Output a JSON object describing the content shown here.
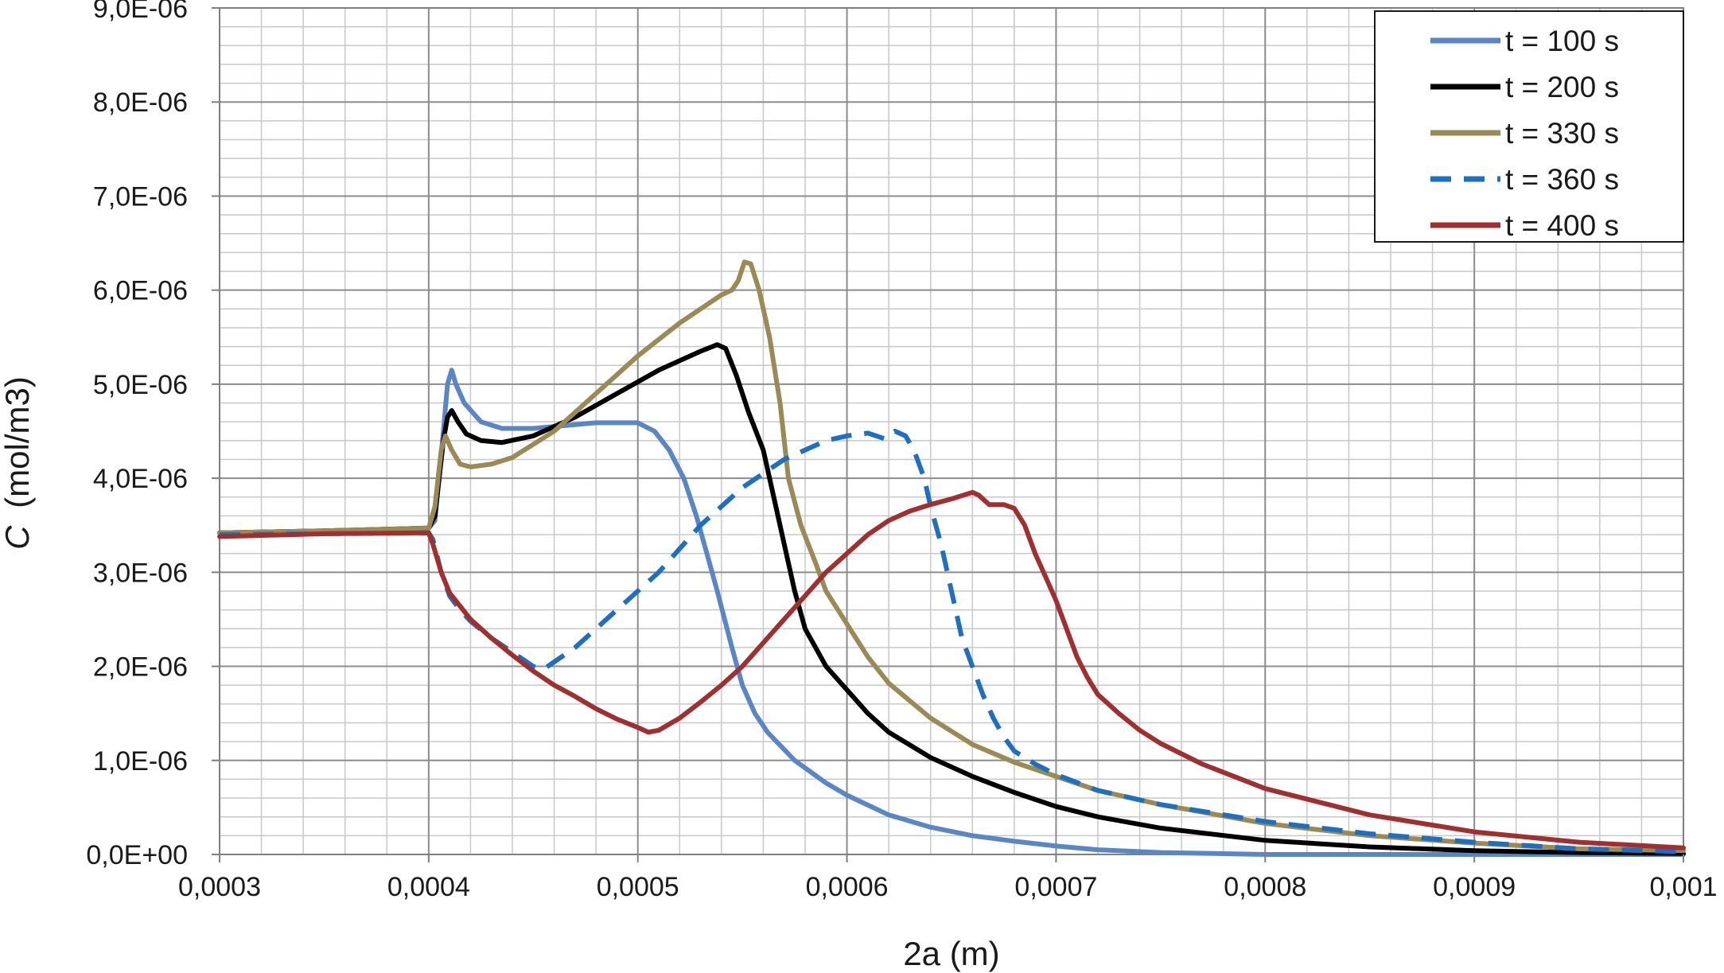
{
  "chart_data": {
    "type": "line",
    "title": "",
    "xlabel": "2a (m)",
    "ylabel_symbol": "C",
    "ylabel_unit": "(mol/m3)",
    "xlim": [
      0.0003,
      0.001
    ],
    "ylim": [
      0,
      9e-06
    ],
    "x_ticks": [
      0.0003,
      0.0004,
      0.0005,
      0.0006,
      0.0007,
      0.0008,
      0.0009,
      0.001
    ],
    "x_tick_labels": [
      "0,0003",
      "0,0004",
      "0,0005",
      "0,0006",
      "0,0007",
      "0,0008",
      "0,0009",
      "0,001"
    ],
    "y_ticks": [
      0,
      1e-06,
      2e-06,
      3e-06,
      4e-06,
      5e-06,
      6e-06,
      7e-06,
      8e-06,
      9e-06
    ],
    "y_tick_labels": [
      "0,0E+00",
      "1,0E-06",
      "2,0E-06",
      "3,0E-06",
      "4,0E-06",
      "5,0E-06",
      "6,0E-06",
      "7,0E-06",
      "8,0E-06",
      "9,0E-06"
    ],
    "grid": true,
    "legend_position": "top-right",
    "series": [
      {
        "name": "t = 100 s",
        "color": "#5b86c6",
        "dash": "solid",
        "points": [
          [
            0.0003,
            3.42e-06
          ],
          [
            0.00035,
            3.44e-06
          ],
          [
            0.0004,
            3.47e-06
          ],
          [
            0.000403,
            3.55e-06
          ],
          [
            0.000407,
            4.5e-06
          ],
          [
            0.000409,
            5e-06
          ],
          [
            0.000411,
            5.15e-06
          ],
          [
            0.000413,
            5e-06
          ],
          [
            0.000417,
            4.8e-06
          ],
          [
            0.000425,
            4.6e-06
          ],
          [
            0.000435,
            4.53e-06
          ],
          [
            0.00045,
            4.53e-06
          ],
          [
            0.000465,
            4.56e-06
          ],
          [
            0.00048,
            4.59e-06
          ],
          [
            0.0005,
            4.59e-06
          ],
          [
            0.000508,
            4.5e-06
          ],
          [
            0.000515,
            4.3e-06
          ],
          [
            0.000522,
            4e-06
          ],
          [
            0.000528,
            3.6e-06
          ],
          [
            0.000533,
            3.2e-06
          ],
          [
            0.000538,
            2.8e-06
          ],
          [
            0.000545,
            2.2e-06
          ],
          [
            0.00055,
            1.8e-06
          ],
          [
            0.000556,
            1.5e-06
          ],
          [
            0.000562,
            1.3e-06
          ],
          [
            0.000575,
            1e-06
          ],
          [
            0.00059,
            7.6e-07
          ],
          [
            0.0006,
            6.3e-07
          ],
          [
            0.00062,
            4.2e-07
          ],
          [
            0.00064,
            2.9e-07
          ],
          [
            0.00066,
            2e-07
          ],
          [
            0.00068,
            1.4e-07
          ],
          [
            0.0007,
            9e-08
          ],
          [
            0.00072,
            5e-08
          ],
          [
            0.00075,
            2e-08
          ],
          [
            0.0008,
            0.0
          ],
          [
            0.0009,
            0.0
          ],
          [
            0.001,
            0.0
          ]
        ]
      },
      {
        "name": "t = 200 s",
        "color": "#000000",
        "dash": "solid",
        "points": [
          [
            0.0003,
            3.42e-06
          ],
          [
            0.00035,
            3.44e-06
          ],
          [
            0.0004,
            3.47e-06
          ],
          [
            0.000403,
            3.6e-06
          ],
          [
            0.000407,
            4.4e-06
          ],
          [
            0.000409,
            4.65e-06
          ],
          [
            0.000411,
            4.72e-06
          ],
          [
            0.000414,
            4.6e-06
          ],
          [
            0.000418,
            4.47e-06
          ],
          [
            0.000425,
            4.4e-06
          ],
          [
            0.000435,
            4.38e-06
          ],
          [
            0.00045,
            4.45e-06
          ],
          [
            0.00047,
            4.65e-06
          ],
          [
            0.00049,
            4.9e-06
          ],
          [
            0.00051,
            5.15e-06
          ],
          [
            0.00053,
            5.35e-06
          ],
          [
            0.000538,
            5.42e-06
          ],
          [
            0.000542,
            5.38e-06
          ],
          [
            0.000547,
            5.1e-06
          ],
          [
            0.000553,
            4.7e-06
          ],
          [
            0.00056,
            4.3e-06
          ],
          [
            0.000565,
            3.8e-06
          ],
          [
            0.00057,
            3.3e-06
          ],
          [
            0.000575,
            2.8e-06
          ],
          [
            0.00058,
            2.4e-06
          ],
          [
            0.00059,
            2e-06
          ],
          [
            0.0006,
            1.75e-06
          ],
          [
            0.00061,
            1.5e-06
          ],
          [
            0.00062,
            1.3e-06
          ],
          [
            0.00064,
            1.03e-06
          ],
          [
            0.00066,
            8.3e-07
          ],
          [
            0.00068,
            6.6e-07
          ],
          [
            0.0007,
            5.1e-07
          ],
          [
            0.00072,
            4e-07
          ],
          [
            0.00075,
            2.8e-07
          ],
          [
            0.0008,
            1.5e-07
          ],
          [
            0.00085,
            8e-08
          ],
          [
            0.0009,
            4e-08
          ],
          [
            0.00095,
            2e-08
          ],
          [
            0.001,
            1e-08
          ]
        ]
      },
      {
        "name": "t = 330 s",
        "color": "#9a8a55",
        "dash": "solid",
        "points": [
          [
            0.0003,
            3.42e-06
          ],
          [
            0.00035,
            3.44e-06
          ],
          [
            0.0004,
            3.47e-06
          ],
          [
            0.000403,
            3.7e-06
          ],
          [
            0.000406,
            4.3e-06
          ],
          [
            0.000408,
            4.45e-06
          ],
          [
            0.000411,
            4.3e-06
          ],
          [
            0.000415,
            4.15e-06
          ],
          [
            0.00042,
            4.12e-06
          ],
          [
            0.00043,
            4.15e-06
          ],
          [
            0.00044,
            4.22e-06
          ],
          [
            0.00046,
            4.5e-06
          ],
          [
            0.00048,
            4.9e-06
          ],
          [
            0.0005,
            5.3e-06
          ],
          [
            0.00052,
            5.65e-06
          ],
          [
            0.00054,
            5.95e-06
          ],
          [
            0.000545,
            6e-06
          ],
          [
            0.000548,
            6.1e-06
          ],
          [
            0.000551,
            6.3e-06
          ],
          [
            0.000554,
            6.28e-06
          ],
          [
            0.000558,
            6e-06
          ],
          [
            0.000563,
            5.5e-06
          ],
          [
            0.000568,
            4.8e-06
          ],
          [
            0.000572,
            4e-06
          ],
          [
            0.000578,
            3.5e-06
          ],
          [
            0.000585,
            3.1e-06
          ],
          [
            0.00059,
            2.8e-06
          ],
          [
            0.0006,
            2.45e-06
          ],
          [
            0.00061,
            2.1e-06
          ],
          [
            0.00062,
            1.82e-06
          ],
          [
            0.00064,
            1.45e-06
          ],
          [
            0.00066,
            1.17e-06
          ],
          [
            0.00068,
            9.8e-07
          ],
          [
            0.0007,
            8.3e-07
          ],
          [
            0.00072,
            6.8e-07
          ],
          [
            0.00075,
            5.3e-07
          ],
          [
            0.0008,
            3.3e-07
          ],
          [
            0.00085,
            2e-07
          ],
          [
            0.0009,
            1.2e-07
          ],
          [
            0.00095,
            6e-08
          ],
          [
            0.001,
            4e-08
          ]
        ]
      },
      {
        "name": "t = 360 s",
        "color": "#1f6fc0",
        "dash": "dashed",
        "points": [
          [
            0.0003,
            3.4e-06
          ],
          [
            0.00035,
            3.41e-06
          ],
          [
            0.0004,
            3.42e-06
          ],
          [
            0.000402,
            3.35e-06
          ],
          [
            0.000406,
            3e-06
          ],
          [
            0.00041,
            2.75e-06
          ],
          [
            0.000415,
            2.6e-06
          ],
          [
            0.00042,
            2.48e-06
          ],
          [
            0.00043,
            2.3e-06
          ],
          [
            0.00044,
            2.15e-06
          ],
          [
            0.00045,
            2e-06
          ],
          [
            0.000455,
            1.97e-06
          ],
          [
            0.00047,
            2.2e-06
          ],
          [
            0.00049,
            2.6e-06
          ],
          [
            0.00051,
            3e-06
          ],
          [
            0.00053,
            3.5e-06
          ],
          [
            0.00055,
            3.9e-06
          ],
          [
            0.00057,
            4.2e-06
          ],
          [
            0.00059,
            4.4e-06
          ],
          [
            0.0006,
            4.45e-06
          ],
          [
            0.00061,
            4.48e-06
          ],
          [
            0.000618,
            4.42e-06
          ],
          [
            0.000623,
            4.5e-06
          ],
          [
            0.000628,
            4.45e-06
          ],
          [
            0.000632,
            4.3e-06
          ],
          [
            0.000637,
            4e-06
          ],
          [
            0.00064,
            3.7e-06
          ],
          [
            0.000645,
            3.3e-06
          ],
          [
            0.00065,
            2.8e-06
          ],
          [
            0.000655,
            2.3e-06
          ],
          [
            0.00066,
            2e-06
          ],
          [
            0.000665,
            1.7e-06
          ],
          [
            0.00067,
            1.45e-06
          ],
          [
            0.000675,
            1.25e-06
          ],
          [
            0.00068,
            1.1e-06
          ],
          [
            0.00069,
            9.6e-07
          ],
          [
            0.0007,
            8.5e-07
          ],
          [
            0.00072,
            6.8e-07
          ],
          [
            0.00075,
            5.3e-07
          ],
          [
            0.0008,
            3.5e-07
          ],
          [
            0.00085,
            2.2e-07
          ],
          [
            0.0009,
            1.3e-07
          ],
          [
            0.00095,
            6e-08
          ],
          [
            0.001,
            3e-08
          ]
        ]
      },
      {
        "name": "t = 400 s",
        "color": "#a03030",
        "dash": "solid",
        "points": [
          [
            0.0003,
            3.38e-06
          ],
          [
            0.00035,
            3.41e-06
          ],
          [
            0.0004,
            3.42e-06
          ],
          [
            0.000402,
            3.3e-06
          ],
          [
            0.000406,
            3e-06
          ],
          [
            0.00041,
            2.78e-06
          ],
          [
            0.00042,
            2.5e-06
          ],
          [
            0.00043,
            2.3e-06
          ],
          [
            0.00044,
            2.12e-06
          ],
          [
            0.00045,
            1.95e-06
          ],
          [
            0.00046,
            1.8e-06
          ],
          [
            0.00047,
            1.68e-06
          ],
          [
            0.00048,
            1.55e-06
          ],
          [
            0.00049,
            1.44e-06
          ],
          [
            0.0005,
            1.35e-06
          ],
          [
            0.000505,
            1.3e-06
          ],
          [
            0.00051,
            1.32e-06
          ],
          [
            0.00052,
            1.45e-06
          ],
          [
            0.00053,
            1.62e-06
          ],
          [
            0.00054,
            1.8e-06
          ],
          [
            0.00055,
            2e-06
          ],
          [
            0.00056,
            2.25e-06
          ],
          [
            0.00057,
            2.5e-06
          ],
          [
            0.00058,
            2.75e-06
          ],
          [
            0.00059,
            3e-06
          ],
          [
            0.0006,
            3.2e-06
          ],
          [
            0.00061,
            3.4e-06
          ],
          [
            0.00062,
            3.55e-06
          ],
          [
            0.00063,
            3.65e-06
          ],
          [
            0.00064,
            3.72e-06
          ],
          [
            0.00065,
            3.78e-06
          ],
          [
            0.00066,
            3.85e-06
          ],
          [
            0.000663,
            3.82e-06
          ],
          [
            0.000668,
            3.72e-06
          ],
          [
            0.000675,
            3.72e-06
          ],
          [
            0.00068,
            3.68e-06
          ],
          [
            0.000685,
            3.5e-06
          ],
          [
            0.00069,
            3.2e-06
          ],
          [
            0.000695,
            2.95e-06
          ],
          [
            0.0007,
            2.7e-06
          ],
          [
            0.000705,
            2.4e-06
          ],
          [
            0.00071,
            2.1e-06
          ],
          [
            0.000715,
            1.88e-06
          ],
          [
            0.00072,
            1.7e-06
          ],
          [
            0.00073,
            1.5e-06
          ],
          [
            0.00074,
            1.32e-06
          ],
          [
            0.00075,
            1.18e-06
          ],
          [
            0.00077,
            9.6e-07
          ],
          [
            0.0008,
            7e-07
          ],
          [
            0.00085,
            4.2e-07
          ],
          [
            0.0009,
            2.4e-07
          ],
          [
            0.00095,
            1.3e-07
          ],
          [
            0.001,
            7e-08
          ]
        ]
      }
    ]
  }
}
